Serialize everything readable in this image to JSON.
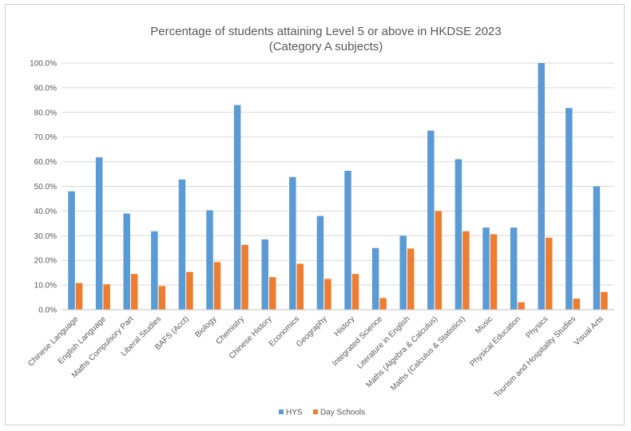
{
  "chart_data": {
    "type": "bar",
    "title": "Percentage of students attaining Level 5 or above in HKDSE 2023",
    "subtitle": "(Category A subjects)",
    "categories": [
      "Chinese Language",
      "English Language",
      "Maths Compulsory Part",
      "Liberal Studies",
      "BAFS (Acct)",
      "Biology",
      "Chemistry",
      "Chinese History",
      "Economics",
      "Geography",
      "History",
      "Integrated Science",
      "Literature in English",
      "Maths (Algebra & Calculus)",
      "Maths (Calculus & Statistics)",
      "Music",
      "Physical Education",
      "Physics",
      "Tourism and Hospitality Studies",
      "Visual Arts"
    ],
    "series": [
      {
        "name": "HYS",
        "color": "#5b9bd5",
        "values": [
          48.0,
          61.8,
          39.0,
          31.8,
          52.8,
          40.3,
          83.0,
          28.5,
          53.8,
          38.0,
          56.3,
          25.0,
          30.0,
          72.6,
          61.0,
          33.3,
          33.3,
          100.0,
          81.8,
          50.0
        ]
      },
      {
        "name": "Day Schools",
        "color": "#ed7d31",
        "values": [
          10.8,
          10.3,
          14.5,
          9.6,
          15.3,
          19.3,
          26.3,
          13.2,
          18.6,
          12.5,
          14.5,
          4.7,
          24.8,
          40.0,
          31.8,
          30.6,
          3.0,
          29.2,
          4.5,
          7.2
        ]
      }
    ],
    "y_ticks": [
      "0.0%",
      "10.0%",
      "20.0%",
      "30.0%",
      "40.0%",
      "50.0%",
      "60.0%",
      "70.0%",
      "80.0%",
      "90.0%",
      "100.0%"
    ],
    "ylim": [
      0,
      100
    ],
    "grid": true,
    "legend_position": "bottom"
  }
}
